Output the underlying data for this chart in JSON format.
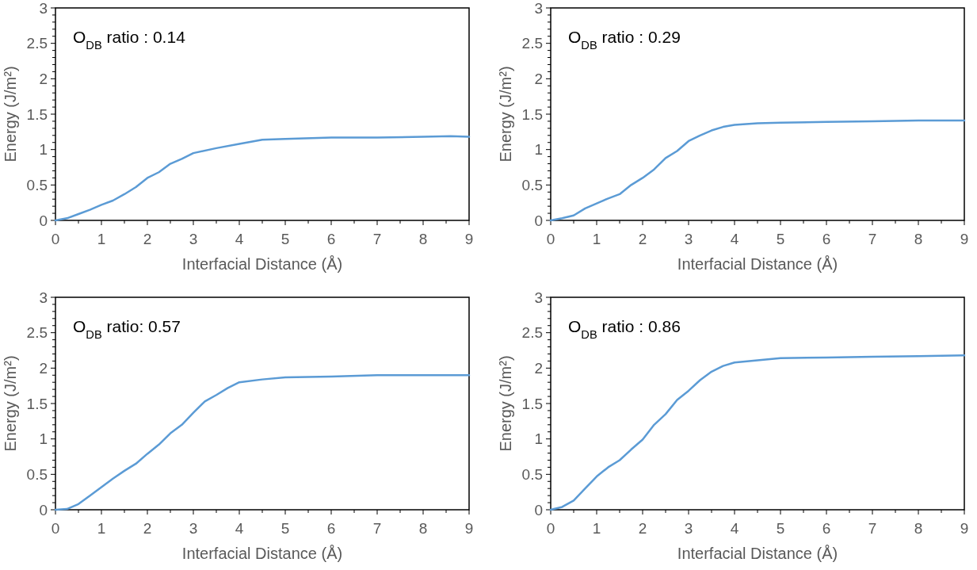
{
  "chart_data": [
    {
      "type": "line",
      "xlabel": "Interfacial Distance (Å)",
      "ylabel": "Energy (J/m²)",
      "annotations": [
        "O$_{DB}$ ratio : 0.14"
      ],
      "grid": false,
      "marker": "none",
      "line_style": "solid",
      "xlim": [
        0,
        9
      ],
      "ylim": [
        0,
        3
      ],
      "xticks": [
        0,
        {
          "value": 0.5,
          "label": null
        },
        1,
        {
          "value": 1.5,
          "label": null
        },
        2,
        {
          "value": 2.5,
          "label": null
        },
        3,
        {
          "value": 3.5,
          "label": null
        },
        4,
        {
          "value": 4.5,
          "label": null
        },
        5,
        {
          "value": 5.5,
          "label": null
        },
        6,
        {
          "value": 6.5,
          "label": null
        },
        7,
        {
          "value": 7.5,
          "label": null
        },
        8,
        {
          "value": 8.5,
          "label": null
        },
        9
      ],
      "yticks": [
        0,
        {
          "value": 0.1,
          "label": null
        },
        {
          "value": 0.2,
          "label": null
        },
        {
          "value": 0.3,
          "label": null
        },
        {
          "value": 0.4,
          "label": null
        },
        0.5,
        {
          "value": 0.6,
          "label": null
        },
        {
          "value": 0.7,
          "label": null
        },
        {
          "value": 0.8,
          "label": null
        },
        {
          "value": 0.9,
          "label": null
        },
        1,
        {
          "value": 1.1,
          "label": null
        },
        {
          "value": 1.2,
          "label": null
        },
        {
          "value": 1.3,
          "label": null
        },
        {
          "value": 1.4,
          "label": null
        },
        1.5,
        {
          "value": 1.6,
          "label": null
        },
        {
          "value": 1.7,
          "label": null
        },
        {
          "value": 1.8,
          "label": null
        },
        {
          "value": 1.9,
          "label": null
        },
        2,
        {
          "value": 2.1,
          "label": null
        },
        {
          "value": 2.2,
          "label": null
        },
        {
          "value": 2.3,
          "label": null
        },
        {
          "value": 2.4,
          "label": null
        },
        2.5,
        {
          "value": 2.6,
          "label": null
        },
        {
          "value": 2.7,
          "label": null
        },
        {
          "value": 2.8,
          "label": null
        },
        {
          "value": 2.9,
          "label": null
        },
        3
      ],
      "x": [
        0,
        0.25,
        0.5,
        0.75,
        1,
        1.25,
        1.5,
        1.75,
        2,
        2.25,
        2.5,
        2.75,
        3,
        3.5,
        4,
        4.5,
        5,
        6,
        7,
        8,
        8.6,
        9
      ],
      "series": [
        {
          "color": "#5b9bd5",
          "values": [
            0,
            0.03,
            0.09,
            0.15,
            0.22,
            0.28,
            0.37,
            0.47,
            0.6,
            0.68,
            0.8,
            0.87,
            0.95,
            1.02,
            1.08,
            1.14,
            1.15,
            1.17,
            1.17,
            1.18,
            1.19,
            1.18
          ]
        }
      ]
    },
    {
      "type": "line",
      "xlabel": "Interfacial Distance (Å)",
      "ylabel": "Energy (J/m²)",
      "annotations": [
        "O$_{DB}$ ratio : 0.29"
      ],
      "grid": false,
      "marker": "none",
      "line_style": "solid",
      "xlim": [
        0,
        9
      ],
      "ylim": [
        0,
        3
      ],
      "xticks": [
        0,
        {
          "value": 0.5,
          "label": null
        },
        1,
        {
          "value": 1.5,
          "label": null
        },
        2,
        {
          "value": 2.5,
          "label": null
        },
        3,
        {
          "value": 3.5,
          "label": null
        },
        4,
        {
          "value": 4.5,
          "label": null
        },
        5,
        {
          "value": 5.5,
          "label": null
        },
        6,
        {
          "value": 6.5,
          "label": null
        },
        7,
        {
          "value": 7.5,
          "label": null
        },
        8,
        {
          "value": 8.5,
          "label": null
        },
        9
      ],
      "yticks": [
        0,
        {
          "value": 0.1,
          "label": null
        },
        {
          "value": 0.2,
          "label": null
        },
        {
          "value": 0.3,
          "label": null
        },
        {
          "value": 0.4,
          "label": null
        },
        0.5,
        {
          "value": 0.6,
          "label": null
        },
        {
          "value": 0.7,
          "label": null
        },
        {
          "value": 0.8,
          "label": null
        },
        {
          "value": 0.9,
          "label": null
        },
        1,
        {
          "value": 1.1,
          "label": null
        },
        {
          "value": 1.2,
          "label": null
        },
        {
          "value": 1.3,
          "label": null
        },
        {
          "value": 1.4,
          "label": null
        },
        1.5,
        {
          "value": 1.6,
          "label": null
        },
        {
          "value": 1.7,
          "label": null
        },
        {
          "value": 1.8,
          "label": null
        },
        {
          "value": 1.9,
          "label": null
        },
        2,
        {
          "value": 2.1,
          "label": null
        },
        {
          "value": 2.2,
          "label": null
        },
        {
          "value": 2.3,
          "label": null
        },
        {
          "value": 2.4,
          "label": null
        },
        2.5,
        {
          "value": 2.6,
          "label": null
        },
        {
          "value": 2.7,
          "label": null
        },
        {
          "value": 2.8,
          "label": null
        },
        {
          "value": 2.9,
          "label": null
        },
        3
      ],
      "x": [
        0,
        0.25,
        0.5,
        0.75,
        1,
        1.25,
        1.5,
        1.75,
        2,
        2.25,
        2.5,
        2.75,
        3,
        3.25,
        3.5,
        3.75,
        4,
        4.5,
        5,
        6,
        7,
        8,
        9
      ],
      "series": [
        {
          "color": "#5b9bd5",
          "values": [
            0,
            0.03,
            0.07,
            0.17,
            0.24,
            0.31,
            0.37,
            0.5,
            0.6,
            0.72,
            0.88,
            0.98,
            1.12,
            1.2,
            1.27,
            1.32,
            1.35,
            1.37,
            1.38,
            1.39,
            1.4,
            1.41,
            1.41
          ]
        }
      ]
    },
    {
      "type": "line",
      "xlabel": "Interfacial Distance (Å)",
      "ylabel": "Energy (J/m²)",
      "annotations": [
        "O$_{DB}$ ratio: 0.57"
      ],
      "grid": false,
      "marker": "none",
      "line_style": "solid",
      "xlim": [
        0,
        9
      ],
      "ylim": [
        0,
        3
      ],
      "xticks": [
        0,
        {
          "value": 0.5,
          "label": null
        },
        1,
        {
          "value": 1.5,
          "label": null
        },
        2,
        {
          "value": 2.5,
          "label": null
        },
        3,
        {
          "value": 3.5,
          "label": null
        },
        4,
        {
          "value": 4.5,
          "label": null
        },
        5,
        {
          "value": 5.5,
          "label": null
        },
        6,
        {
          "value": 6.5,
          "label": null
        },
        7,
        {
          "value": 7.5,
          "label": null
        },
        8,
        {
          "value": 8.5,
          "label": null
        },
        9
      ],
      "yticks": [
        0,
        {
          "value": 0.1,
          "label": null
        },
        {
          "value": 0.2,
          "label": null
        },
        {
          "value": 0.3,
          "label": null
        },
        {
          "value": 0.4,
          "label": null
        },
        0.5,
        {
          "value": 0.6,
          "label": null
        },
        {
          "value": 0.7,
          "label": null
        },
        {
          "value": 0.8,
          "label": null
        },
        {
          "value": 0.9,
          "label": null
        },
        1,
        {
          "value": 1.1,
          "label": null
        },
        {
          "value": 1.2,
          "label": null
        },
        {
          "value": 1.3,
          "label": null
        },
        {
          "value": 1.4,
          "label": null
        },
        1.5,
        {
          "value": 1.6,
          "label": null
        },
        {
          "value": 1.7,
          "label": null
        },
        {
          "value": 1.8,
          "label": null
        },
        {
          "value": 1.9,
          "label": null
        },
        2,
        {
          "value": 2.1,
          "label": null
        },
        {
          "value": 2.2,
          "label": null
        },
        {
          "value": 2.3,
          "label": null
        },
        {
          "value": 2.4,
          "label": null
        },
        2.5,
        {
          "value": 2.6,
          "label": null
        },
        {
          "value": 2.7,
          "label": null
        },
        {
          "value": 2.8,
          "label": null
        },
        {
          "value": 2.9,
          "label": null
        },
        3
      ],
      "x": [
        0,
        0.25,
        0.5,
        0.75,
        1,
        1.25,
        1.5,
        1.75,
        2,
        2.25,
        2.5,
        2.75,
        3,
        3.25,
        3.5,
        3.75,
        4,
        4.5,
        5,
        6,
        7,
        8,
        9
      ],
      "series": [
        {
          "color": "#5b9bd5",
          "values": [
            0,
            0.01,
            0.08,
            0.2,
            0.32,
            0.44,
            0.55,
            0.65,
            0.79,
            0.92,
            1.08,
            1.2,
            1.37,
            1.53,
            1.62,
            1.72,
            1.8,
            1.84,
            1.87,
            1.88,
            1.9,
            1.9,
            1.9
          ]
        }
      ]
    },
    {
      "type": "line",
      "xlabel": "Interfacial Distance (Å)",
      "ylabel": "Energy (J/m²)",
      "annotations": [
        "O$_{DB}$ ratio : 0.86"
      ],
      "grid": false,
      "marker": "none",
      "line_style": "solid",
      "xlim": [
        0,
        9
      ],
      "ylim": [
        0,
        3
      ],
      "xticks": [
        0,
        {
          "value": 0.5,
          "label": null
        },
        1,
        {
          "value": 1.5,
          "label": null
        },
        2,
        {
          "value": 2.5,
          "label": null
        },
        3,
        {
          "value": 3.5,
          "label": null
        },
        4,
        {
          "value": 4.5,
          "label": null
        },
        5,
        {
          "value": 5.5,
          "label": null
        },
        6,
        {
          "value": 6.5,
          "label": null
        },
        7,
        {
          "value": 7.5,
          "label": null
        },
        8,
        {
          "value": 8.5,
          "label": null
        },
        9
      ],
      "yticks": [
        0,
        {
          "value": 0.1,
          "label": null
        },
        {
          "value": 0.2,
          "label": null
        },
        {
          "value": 0.3,
          "label": null
        },
        {
          "value": 0.4,
          "label": null
        },
        0.5,
        {
          "value": 0.6,
          "label": null
        },
        {
          "value": 0.7,
          "label": null
        },
        {
          "value": 0.8,
          "label": null
        },
        {
          "value": 0.9,
          "label": null
        },
        1,
        {
          "value": 1.1,
          "label": null
        },
        {
          "value": 1.2,
          "label": null
        },
        {
          "value": 1.3,
          "label": null
        },
        {
          "value": 1.4,
          "label": null
        },
        1.5,
        {
          "value": 1.6,
          "label": null
        },
        {
          "value": 1.7,
          "label": null
        },
        {
          "value": 1.8,
          "label": null
        },
        {
          "value": 1.9,
          "label": null
        },
        2,
        {
          "value": 2.1,
          "label": null
        },
        {
          "value": 2.2,
          "label": null
        },
        {
          "value": 2.3,
          "label": null
        },
        {
          "value": 2.4,
          "label": null
        },
        2.5,
        {
          "value": 2.6,
          "label": null
        },
        {
          "value": 2.7,
          "label": null
        },
        {
          "value": 2.8,
          "label": null
        },
        {
          "value": 2.9,
          "label": null
        },
        3
      ],
      "x": [
        0,
        0.25,
        0.5,
        0.75,
        1,
        1.25,
        1.5,
        1.75,
        2,
        2.25,
        2.5,
        2.75,
        3,
        3.25,
        3.5,
        3.75,
        4,
        4.5,
        5,
        6,
        7,
        8,
        9
      ],
      "series": [
        {
          "color": "#5b9bd5",
          "values": [
            0,
            0.04,
            0.13,
            0.3,
            0.47,
            0.6,
            0.7,
            0.85,
            0.99,
            1.2,
            1.35,
            1.55,
            1.68,
            1.83,
            1.95,
            2.03,
            2.08,
            2.11,
            2.14,
            2.15,
            2.16,
            2.17,
            2.18
          ]
        }
      ]
    }
  ]
}
